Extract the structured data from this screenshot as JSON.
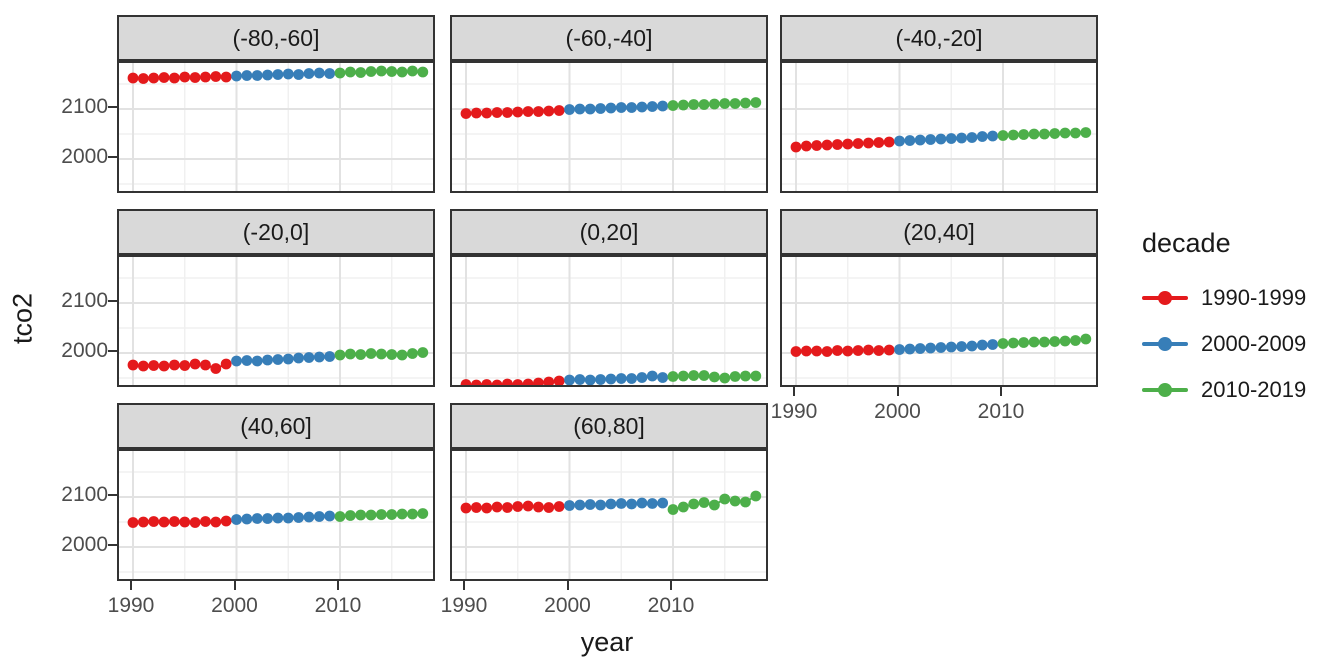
{
  "figure": {
    "y_axis_title": "tco2",
    "x_axis_title": "year"
  },
  "legend": {
    "title": "decade",
    "entries": [
      {
        "label": "1990-1999",
        "color": "#E41A1C"
      },
      {
        "label": "2000-2009",
        "color": "#377EB8"
      },
      {
        "label": "2010-2019",
        "color": "#4DAF4A"
      }
    ]
  },
  "chart_data": {
    "type": "scatter",
    "xlabel": "year",
    "ylabel": "tco2",
    "facet_variable": "latitude band",
    "series_variable": "decade",
    "legend_position": "right",
    "grid": "major and minor, light gray on white (theme_bw style)",
    "x": [
      1990,
      1991,
      1992,
      1993,
      1994,
      1995,
      1996,
      1997,
      1998,
      1999,
      2000,
      2001,
      2002,
      2003,
      2004,
      2005,
      2006,
      2007,
      2008,
      2009,
      2010,
      2011,
      2012,
      2013,
      2014,
      2015,
      2016,
      2017,
      2018
    ],
    "x_ticks": [
      1990,
      2000,
      2010
    ],
    "x_minor_ticks": [
      1995,
      2005,
      2015
    ],
    "y_ticks": [
      2000,
      2100
    ],
    "y_minor_ticks": [
      1950,
      2050,
      2150
    ],
    "x_range": [
      1988.6,
      2019.4
    ],
    "y_range": [
      1928,
      2192
    ],
    "decades": [
      {
        "name": "1990-1999",
        "color": "#E41A1C",
        "start_year": 1990,
        "end_year": 1999
      },
      {
        "name": "2000-2009",
        "color": "#377EB8",
        "start_year": 2000,
        "end_year": 2009
      },
      {
        "name": "2010-2019",
        "color": "#4DAF4A",
        "start_year": 2010,
        "end_year": 2018
      }
    ],
    "facets": [
      {
        "label": "(-80,-60]",
        "values": [
          2162,
          2161,
          2162,
          2163,
          2162,
          2164,
          2163,
          2164,
          2165,
          2164,
          2166,
          2167,
          2167,
          2168,
          2169,
          2170,
          2169,
          2171,
          2172,
          2171,
          2172,
          2174,
          2173,
          2175,
          2176,
          2175,
          2174,
          2176,
          2174
        ]
      },
      {
        "label": "(-60,-40]",
        "values": [
          2091,
          2092,
          2092,
          2093,
          2093,
          2094,
          2095,
          2095,
          2096,
          2097,
          2099,
          2100,
          2100,
          2101,
          2102,
          2103,
          2103,
          2104,
          2105,
          2106,
          2107,
          2108,
          2109,
          2109,
          2110,
          2111,
          2111,
          2112,
          2113
        ]
      },
      {
        "label": "(-40,-20]",
        "values": [
          2024,
          2026,
          2027,
          2028,
          2029,
          2030,
          2031,
          2032,
          2033,
          2034,
          2036,
          2037,
          2038,
          2039,
          2040,
          2041,
          2042,
          2043,
          2045,
          2046,
          2047,
          2048,
          2049,
          2050,
          2050,
          2051,
          2052,
          2052,
          2053
        ]
      },
      {
        "label": "(-20,0]",
        "values": [
          1976,
          1974,
          1975,
          1974,
          1976,
          1975,
          1978,
          1976,
          1969,
          1978,
          1984,
          1985,
          1984,
          1986,
          1987,
          1988,
          1990,
          1991,
          1992,
          1993,
          1996,
          1998,
          1997,
          1999,
          1998,
          1997,
          1996,
          1999,
          2001
        ]
      },
      {
        "label": "(0,20]",
        "values": [
          1937,
          1936,
          1937,
          1936,
          1938,
          1937,
          1938,
          1940,
          1942,
          1944,
          1946,
          1947,
          1946,
          1947,
          1948,
          1949,
          1949,
          1951,
          1954,
          1951,
          1953,
          1954,
          1955,
          1955,
          1952,
          1950,
          1953,
          1954,
          1954
        ]
      },
      {
        "label": "(20,40]",
        "values": [
          2003,
          2004,
          2004,
          2003,
          2005,
          2004,
          2005,
          2006,
          2005,
          2006,
          2007,
          2008,
          2009,
          2010,
          2011,
          2012,
          2013,
          2014,
          2016,
          2017,
          2019,
          2020,
          2021,
          2022,
          2022,
          2023,
          2024,
          2025,
          2028
        ]
      },
      {
        "label": "(40,60]",
        "values": [
          2049,
          2050,
          2051,
          2050,
          2051,
          2050,
          2049,
          2051,
          2050,
          2052,
          2055,
          2056,
          2057,
          2057,
          2058,
          2058,
          2059,
          2060,
          2061,
          2062,
          2061,
          2063,
          2064,
          2064,
          2065,
          2065,
          2066,
          2066,
          2067
        ]
      },
      {
        "label": "(60,80]",
        "values": [
          2078,
          2079,
          2078,
          2080,
          2079,
          2081,
          2082,
          2080,
          2079,
          2081,
          2083,
          2084,
          2085,
          2084,
          2086,
          2087,
          2086,
          2088,
          2087,
          2088,
          2075,
          2080,
          2086,
          2089,
          2084,
          2096,
          2092,
          2090,
          2102
        ]
      }
    ],
    "style": {
      "strip_background": "#D9D9D9",
      "panel_border": "#333333",
      "major_grid": "#E2E2E2",
      "minor_grid": "#F0F0F0",
      "tick_text": "#4D4D4D",
      "point_radius_px": 5.4
    }
  }
}
